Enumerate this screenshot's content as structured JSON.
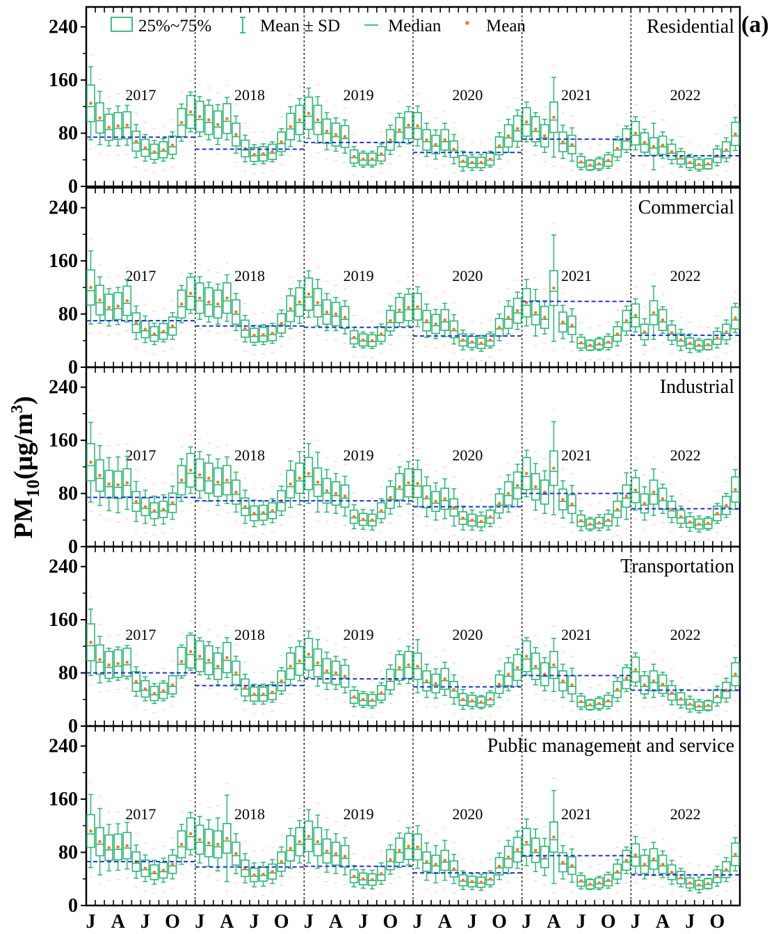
{
  "chart_data": {
    "type": "box",
    "panel_letter": "(a)",
    "ylabel": "PM10(μg/m3)",
    "ylabel_main": "PM",
    "ylabel_sub": "10",
    "ylabel_rest": "(μg/m",
    "ylabel_sup": "3",
    "ylabel_close": ")",
    "ylim": [
      0,
      270
    ],
    "yticks": [
      "0",
      "80",
      "160",
      "240"
    ],
    "ytick_values": [
      0,
      80,
      160,
      240
    ],
    "xtick_labels": [
      "J",
      "A",
      "J",
      "O",
      "J",
      "A",
      "J",
      "O",
      "J",
      "A",
      "J",
      "O",
      "J",
      "A",
      "J",
      "O",
      "J",
      "A",
      "J",
      "O",
      "J",
      "A",
      "J",
      "O"
    ],
    "years": [
      "2017",
      "2018",
      "2019",
      "2020",
      "2021",
      "2022"
    ],
    "legend": {
      "box": "25%~75%",
      "whisker": "Mean ± SD",
      "median": "Median",
      "mean": "Mean"
    },
    "colors": {
      "box": "#2bb673",
      "mean": "#f47c20",
      "annual_mean_line": "#1f2fd0",
      "outlier": "#f6a06a"
    },
    "panels": [
      {
        "title": "Residential",
        "annual_means": [
          74,
          56,
          66,
          51,
          71,
          46
        ],
        "monthly_means": [
          125,
          103,
          89,
          91,
          92,
          68,
          58,
          52,
          55,
          62,
          96,
          112,
          105,
          100,
          93,
          102,
          78,
          57,
          48,
          49,
          52,
          67,
          90,
          100,
          110,
          100,
          83,
          78,
          75,
          45,
          41,
          41,
          49,
          70,
          85,
          92,
          91,
          70,
          63,
          70,
          56,
          38,
          36,
          36,
          41,
          61,
          76,
          87,
          97,
          86,
          76,
          104,
          67,
          63,
          37,
          32,
          34,
          39,
          57,
          71,
          80,
          66,
          60,
          62,
          52,
          43,
          36,
          33,
          34,
          46,
          55,
          79
        ],
        "monthly_sd": [
          55,
          40,
          28,
          30,
          30,
          25,
          20,
          17,
          17,
          20,
          28,
          30,
          30,
          30,
          30,
          32,
          28,
          20,
          15,
          15,
          15,
          20,
          30,
          32,
          38,
          35,
          28,
          25,
          25,
          15,
          12,
          12,
          15,
          22,
          25,
          28,
          30,
          25,
          22,
          25,
          22,
          15,
          12,
          12,
          12,
          20,
          25,
          28,
          30,
          25,
          25,
          60,
          25,
          25,
          12,
          8,
          10,
          12,
          18,
          20,
          25,
          20,
          35,
          20,
          18,
          14,
          12,
          10,
          8,
          15,
          18,
          25
        ]
      },
      {
        "title": "Commercial",
        "annual_means": [
          70,
          62,
          60,
          47,
          99,
          48
        ],
        "monthly_means": [
          120,
          101,
          90,
          92,
          100,
          67,
          57,
          50,
          54,
          62,
          95,
          111,
          104,
          98,
          95,
          104,
          83,
          58,
          48,
          49,
          51,
          66,
          88,
          98,
          110,
          97,
          83,
          80,
          75,
          45,
          41,
          40,
          50,
          70,
          86,
          90,
          91,
          70,
          65,
          71,
          57,
          41,
          38,
          36,
          41,
          60,
          75,
          85,
          97,
          82,
          75,
          119,
          68,
          63,
          37,
          33,
          35,
          38,
          50,
          70,
          78,
          53,
          82,
          71,
          52,
          41,
          36,
          33,
          34,
          44,
          53,
          74
        ],
        "monthly_sd": [
          55,
          35,
          28,
          28,
          32,
          25,
          20,
          16,
          16,
          20,
          28,
          30,
          32,
          30,
          30,
          35,
          28,
          20,
          15,
          15,
          15,
          20,
          30,
          32,
          35,
          35,
          28,
          25,
          25,
          15,
          12,
          12,
          15,
          22,
          25,
          28,
          30,
          25,
          22,
          25,
          22,
          15,
          12,
          12,
          12,
          20,
          25,
          28,
          35,
          35,
          25,
          80,
          25,
          25,
          12,
          8,
          10,
          12,
          18,
          22,
          25,
          20,
          40,
          20,
          18,
          16,
          14,
          10,
          8,
          15,
          18,
          22
        ]
      },
      {
        "title": "Industrial",
        "annual_means": [
          74,
          69,
          69,
          60,
          80,
          57
        ],
        "monthly_means": [
          127,
          107,
          94,
          93,
          96,
          68,
          60,
          54,
          56,
          66,
          100,
          115,
          108,
          103,
          97,
          100,
          82,
          60,
          50,
          51,
          54,
          69,
          94,
          103,
          110,
          97,
          84,
          80,
          76,
          45,
          41,
          40,
          54,
          74,
          90,
          96,
          95,
          75,
          68,
          72,
          59,
          43,
          40,
          38,
          45,
          65,
          80,
          92,
          110,
          90,
          82,
          118,
          71,
          64,
          39,
          34,
          36,
          40,
          56,
          76,
          85,
          65,
          82,
          72,
          56,
          45,
          37,
          34,
          35,
          50,
          62,
          86
        ],
        "monthly_sd": [
          60,
          45,
          40,
          42,
          40,
          30,
          25,
          22,
          22,
          25,
          32,
          35,
          35,
          35,
          35,
          35,
          30,
          25,
          20,
          18,
          18,
          22,
          35,
          40,
          45,
          45,
          32,
          30,
          30,
          18,
          15,
          15,
          18,
          25,
          30,
          32,
          35,
          30,
          28,
          30,
          28,
          18,
          15,
          14,
          15,
          22,
          28,
          32,
          35,
          35,
          32,
          70,
          28,
          28,
          15,
          10,
          12,
          15,
          25,
          35,
          30,
          25,
          35,
          22,
          20,
          16,
          14,
          12,
          10,
          15,
          18,
          30
        ]
      },
      {
        "title": "Transportation",
        "annual_means": [
          80,
          61,
          71,
          59,
          76,
          54
        ],
        "monthly_means": [
          126,
          100,
          92,
          94,
          96,
          67,
          56,
          49,
          53,
          62,
          97,
          112,
          105,
          99,
          90,
          103,
          80,
          58,
          48,
          48,
          51,
          68,
          90,
          98,
          108,
          95,
          83,
          80,
          75,
          44,
          40,
          39,
          50,
          70,
          88,
          92,
          90,
          68,
          64,
          71,
          55,
          40,
          38,
          36,
          41,
          63,
          78,
          88,
          105,
          90,
          78,
          92,
          68,
          62,
          37,
          32,
          34,
          38,
          55,
          72,
          85,
          62,
          68,
          63,
          50,
          41,
          33,
          30,
          31,
          45,
          54,
          78
        ],
        "monthly_sd": [
          50,
          35,
          25,
          25,
          25,
          22,
          18,
          15,
          15,
          18,
          25,
          28,
          28,
          28,
          28,
          30,
          25,
          20,
          15,
          15,
          15,
          20,
          28,
          30,
          35,
          35,
          28,
          25,
          25,
          15,
          12,
          12,
          15,
          22,
          25,
          28,
          40,
          25,
          22,
          25,
          22,
          15,
          12,
          10,
          12,
          20,
          25,
          28,
          28,
          28,
          25,
          40,
          25,
          25,
          12,
          8,
          10,
          12,
          18,
          20,
          25,
          20,
          25,
          18,
          18,
          14,
          12,
          10,
          8,
          15,
          18,
          25
        ]
      },
      {
        "title": "Public management and service",
        "annual_means": [
          66,
          58,
          59,
          49,
          75,
          46
        ],
        "monthly_means": [
          112,
          96,
          87,
          88,
          90,
          66,
          56,
          50,
          53,
          62,
          92,
          108,
          99,
          94,
          92,
          101,
          78,
          56,
          46,
          47,
          51,
          66,
          86,
          96,
          104,
          96,
          82,
          78,
          74,
          44,
          40,
          39,
          48,
          69,
          83,
          89,
          88,
          66,
          62,
          68,
          55,
          38,
          36,
          35,
          40,
          59,
          73,
          84,
          95,
          83,
          73,
          103,
          65,
          60,
          37,
          32,
          34,
          38,
          51,
          68,
          76,
          62,
          70,
          62,
          50,
          42,
          34,
          31,
          33,
          44,
          54,
          77
        ],
        "monthly_sd": [
          55,
          50,
          35,
          35,
          35,
          25,
          20,
          18,
          18,
          22,
          30,
          32,
          35,
          35,
          40,
          65,
          30,
          22,
          18,
          18,
          18,
          22,
          30,
          32,
          40,
          40,
          32,
          30,
          28,
          16,
          14,
          14,
          16,
          22,
          26,
          28,
          32,
          28,
          28,
          30,
          22,
          14,
          12,
          12,
          12,
          20,
          25,
          28,
          35,
          32,
          28,
          70,
          25,
          25,
          12,
          8,
          10,
          12,
          18,
          20,
          28,
          22,
          25,
          20,
          18,
          14,
          12,
          12,
          8,
          15,
          18,
          25
        ]
      }
    ]
  }
}
